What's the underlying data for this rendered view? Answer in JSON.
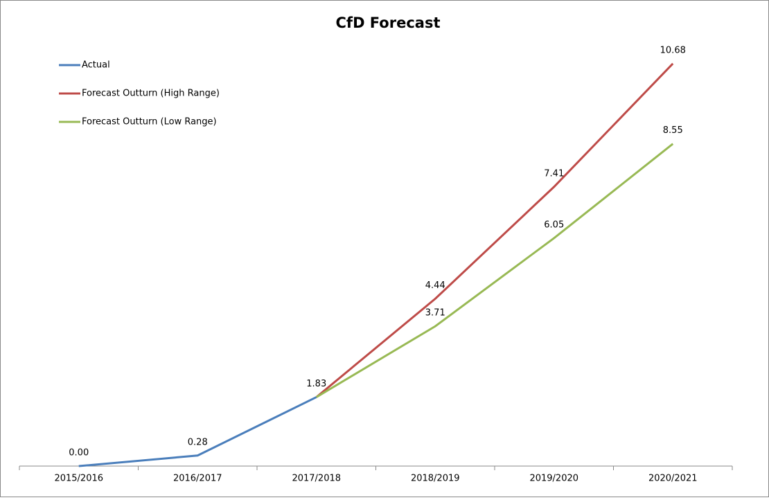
{
  "chart_data": {
    "type": "line",
    "title": "CfD Forecast",
    "categories": [
      "2015/2016",
      "2016/2017",
      "2017/2018",
      "2018/2019",
      "2019/2020",
      "2020/2021"
    ],
    "series": [
      {
        "name": "Actual",
        "color": "#4a7ebb",
        "values": [
          0,
          0.28,
          1.83,
          null,
          null,
          null
        ],
        "value_labels": [
          "0.00",
          "0.28",
          "1.83",
          null,
          null,
          null
        ]
      },
      {
        "name": "Forecast Outturn (High Range)",
        "color": "#be4b48",
        "values": [
          null,
          null,
          1.83,
          4.44,
          7.41,
          10.68
        ],
        "value_labels": [
          null,
          null,
          null,
          "4.44",
          "7.41",
          "10.68"
        ]
      },
      {
        "name": "Forecast Outturn (Low Range)",
        "color": "#98b954",
        "values": [
          null,
          null,
          1.83,
          3.71,
          6.05,
          8.55
        ],
        "value_labels": [
          null,
          null,
          null,
          "3.71",
          "6.05",
          "8.55"
        ]
      }
    ],
    "ylim": [
      0,
      12
    ],
    "legend": "upper left",
    "grid": false
  }
}
